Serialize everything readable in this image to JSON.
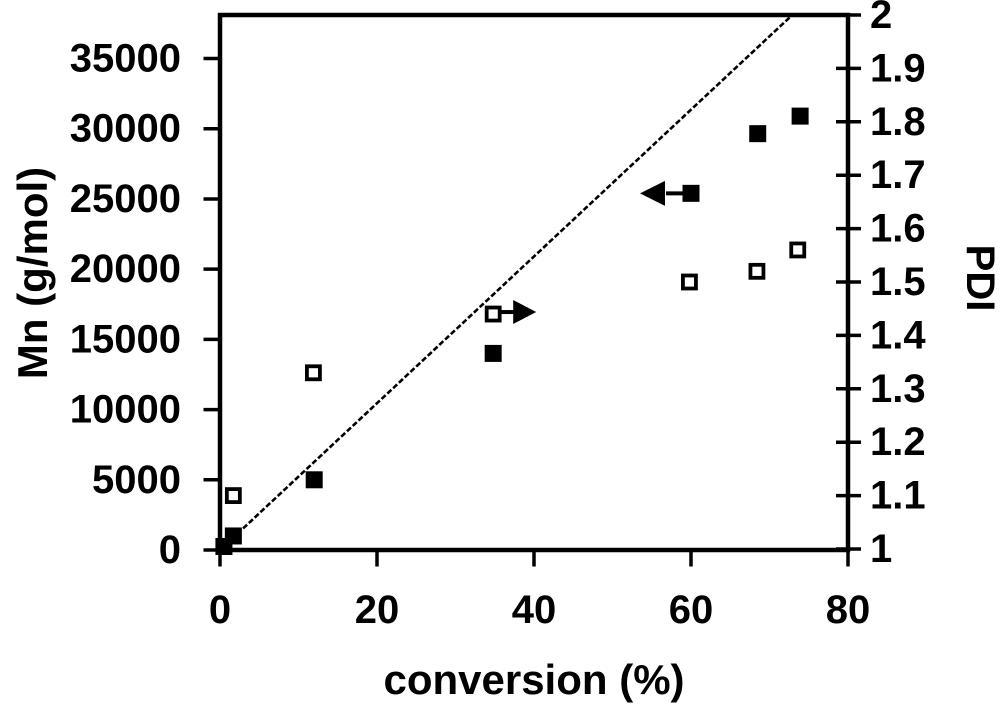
{
  "figure": {
    "background": "#ffffff",
    "foreground": "#000000"
  },
  "chart_data": {
    "type": "scatter",
    "title": "",
    "xlabel": "conversion (%)",
    "ylabel_left": "Mn (g/mol)",
    "ylabel_right": "PDI",
    "grid": false,
    "legend": "none",
    "x_axis": {
      "min": 0,
      "max": 80,
      "tick_values": [
        0,
        20,
        40,
        60,
        80
      ],
      "tick_labels": [
        "0",
        "20",
        "40",
        "60",
        "80"
      ]
    },
    "mn_axis": {
      "min": 0,
      "max_tick": 35000,
      "frame_top_value": 38100,
      "tick_values": [
        0,
        5000,
        10000,
        15000,
        20000,
        25000,
        30000,
        35000
      ],
      "tick_labels": [
        "0",
        "5000",
        "10000",
        "15000",
        "20000",
        "25000",
        "30000",
        "35000"
      ]
    },
    "pdi_axis": {
      "min": 1,
      "max": 2,
      "tick_values": [
        1,
        1.1,
        1.2,
        1.3,
        1.4,
        1.5,
        1.6,
        1.7,
        1.8,
        1.9,
        2
      ],
      "tick_labels": [
        "1",
        "1.1",
        "1.2",
        "1.3",
        "1.4",
        "1.5",
        "1.6",
        "1.7",
        "1.8",
        "1.9",
        "2"
      ]
    },
    "series": [
      {
        "name": "Mn",
        "axis": "left",
        "marker": "filled-square",
        "points": [
          {
            "conversion": 0.5,
            "value": 250
          },
          {
            "conversion": 1.7,
            "value": 1000
          },
          {
            "conversion": 12,
            "value": 5000
          },
          {
            "conversion": 34.8,
            "value": 14000
          },
          {
            "conversion": 60,
            "value": 25400
          },
          {
            "conversion": 68.5,
            "value": 29650
          },
          {
            "conversion": 73.9,
            "value": 30900
          }
        ]
      },
      {
        "name": "PDI",
        "axis": "right",
        "marker": "open-square",
        "points": [
          {
            "conversion": 1.7,
            "value": 1.1
          },
          {
            "conversion": 11.9,
            "value": 1.33
          },
          {
            "conversion": 34.8,
            "value": 1.44
          },
          {
            "conversion": 59.8,
            "value": 1.5
          },
          {
            "conversion": 68.4,
            "value": 1.52
          },
          {
            "conversion": 73.6,
            "value": 1.56
          }
        ]
      }
    ],
    "theoretical_line": {
      "description": "theoretical Mn line",
      "conversion": [
        0,
        72.9
      ],
      "mn": [
        0,
        38100
      ],
      "style": "dotted"
    },
    "arrows": [
      {
        "direction": "left",
        "conversion": 60,
        "mn": 25400,
        "meaning": "Mn series reads left axis"
      },
      {
        "direction": "right",
        "conversion": 34.8,
        "pdi": 1.44,
        "meaning": "PDI series reads right axis"
      }
    ]
  }
}
